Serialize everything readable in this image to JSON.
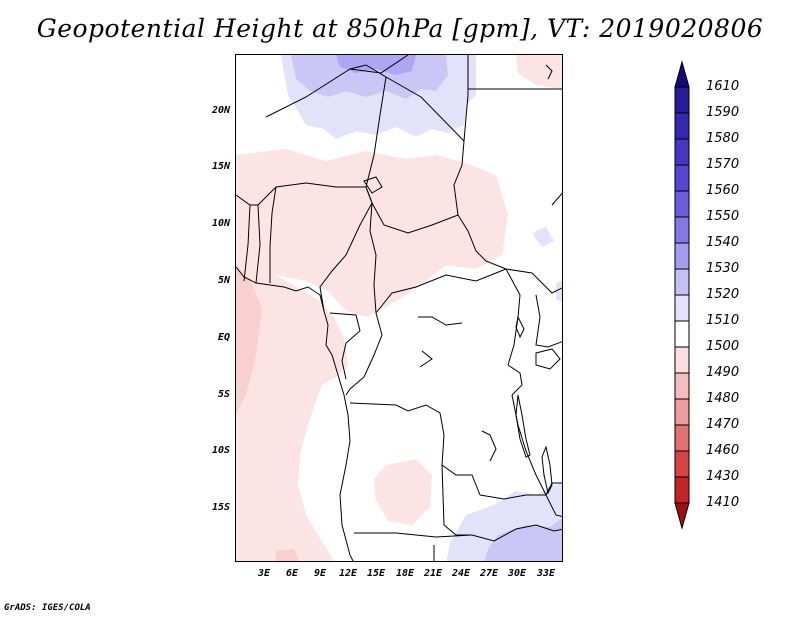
{
  "title": "Geopotential Height at 850hPa [gpm], VT: 2019020806",
  "footer": "GrADS: IGES/COLA",
  "map": {
    "variable": "Geopotential Height",
    "level": "850hPa",
    "units": "gpm",
    "valid_time": "2019020806",
    "lat_labels": [
      "20N",
      "15N",
      "10N",
      "5N",
      "EQ",
      "5S",
      "10S",
      "15S"
    ],
    "lon_labels": [
      "3E",
      "6E",
      "9E",
      "12E",
      "15E",
      "18E",
      "21E",
      "24E",
      "27E",
      "30E",
      "33E"
    ]
  },
  "colorbar": {
    "labels": [
      "1610",
      "1590",
      "1580",
      "1570",
      "1560",
      "1550",
      "1540",
      "1530",
      "1520",
      "1510",
      "1500",
      "1490",
      "1480",
      "1470",
      "1460",
      "1430",
      "1410"
    ],
    "colors": [
      "#140a78",
      "#241c9c",
      "#3328b4",
      "#4536c6",
      "#5546d6",
      "#6a5ee0",
      "#8478e8",
      "#a49cf0",
      "#c6c0f5",
      "#e6e2fb",
      "#ffffff",
      "#fbdede",
      "#f5bebe",
      "#ee9c9c",
      "#e57070",
      "#d84444",
      "#c42424",
      "#a01010"
    ],
    "ramp_colors": {
      "blue_pale": "#e4e2fb",
      "blue_light": "#ccc6f6",
      "blue_mid": "#aea6f2",
      "red_pale": "#fde4e4",
      "red_light": "#f9d0d0"
    }
  }
}
